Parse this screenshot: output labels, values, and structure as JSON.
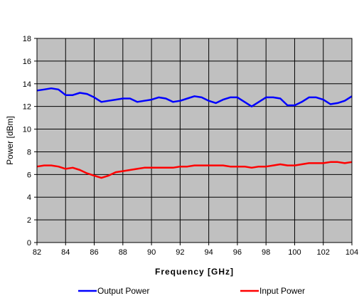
{
  "chart_data": {
    "type": "line",
    "xlabel": "Frequency [GHz]",
    "ylabel": "Power [dBm]",
    "xlim": [
      82,
      104
    ],
    "ylim": [
      0,
      18
    ],
    "xticks": [
      82,
      84,
      86,
      88,
      90,
      92,
      94,
      96,
      98,
      100,
      102,
      104
    ],
    "yticks": [
      0,
      2,
      4,
      6,
      8,
      10,
      12,
      14,
      16,
      18
    ],
    "grid": true,
    "legend_position": "bottom",
    "plot_background": "#c0c0c0",
    "series": [
      {
        "name": "Output Power",
        "color": "#0000ff",
        "x": [
          82,
          82.5,
          83,
          83.5,
          84,
          84.5,
          85,
          85.5,
          86,
          86.5,
          87,
          87.5,
          88,
          88.5,
          89,
          89.5,
          90,
          90.5,
          91,
          91.5,
          92,
          92.5,
          93,
          93.5,
          94,
          94.5,
          95,
          95.5,
          96,
          96.5,
          97,
          97.5,
          98,
          98.5,
          99,
          99.5,
          100,
          100.5,
          101,
          101.5,
          102,
          102.5,
          103,
          103.5,
          104
        ],
        "y": [
          13.4,
          13.5,
          13.6,
          13.5,
          13.0,
          13.0,
          13.2,
          13.1,
          12.8,
          12.4,
          12.5,
          12.6,
          12.7,
          12.7,
          12.4,
          12.5,
          12.6,
          12.8,
          12.7,
          12.4,
          12.5,
          12.7,
          12.9,
          12.8,
          12.5,
          12.3,
          12.6,
          12.8,
          12.8,
          12.4,
          12.0,
          12.4,
          12.8,
          12.8,
          12.7,
          12.1,
          12.1,
          12.4,
          12.8,
          12.8,
          12.6,
          12.2,
          12.3,
          12.5,
          12.9
        ]
      },
      {
        "name": "Input Power",
        "color": "#ff0000",
        "x": [
          82,
          82.5,
          83,
          83.5,
          84,
          84.5,
          85,
          85.5,
          86,
          86.5,
          87,
          87.5,
          88,
          88.5,
          89,
          89.5,
          90,
          90.5,
          91,
          91.5,
          92,
          92.5,
          93,
          93.5,
          94,
          94.5,
          95,
          95.5,
          96,
          96.5,
          97,
          97.5,
          98,
          98.5,
          99,
          99.5,
          100,
          100.5,
          101,
          101.5,
          102,
          102.5,
          103,
          103.5,
          104
        ],
        "y": [
          6.7,
          6.8,
          6.8,
          6.7,
          6.5,
          6.6,
          6.4,
          6.1,
          5.9,
          5.7,
          5.9,
          6.2,
          6.3,
          6.4,
          6.5,
          6.6,
          6.6,
          6.6,
          6.6,
          6.6,
          6.7,
          6.7,
          6.8,
          6.8,
          6.8,
          6.8,
          6.8,
          6.7,
          6.7,
          6.7,
          6.6,
          6.7,
          6.7,
          6.8,
          6.9,
          6.8,
          6.8,
          6.9,
          7.0,
          7.0,
          7.0,
          7.1,
          7.1,
          7.0,
          7.1
        ]
      }
    ]
  }
}
